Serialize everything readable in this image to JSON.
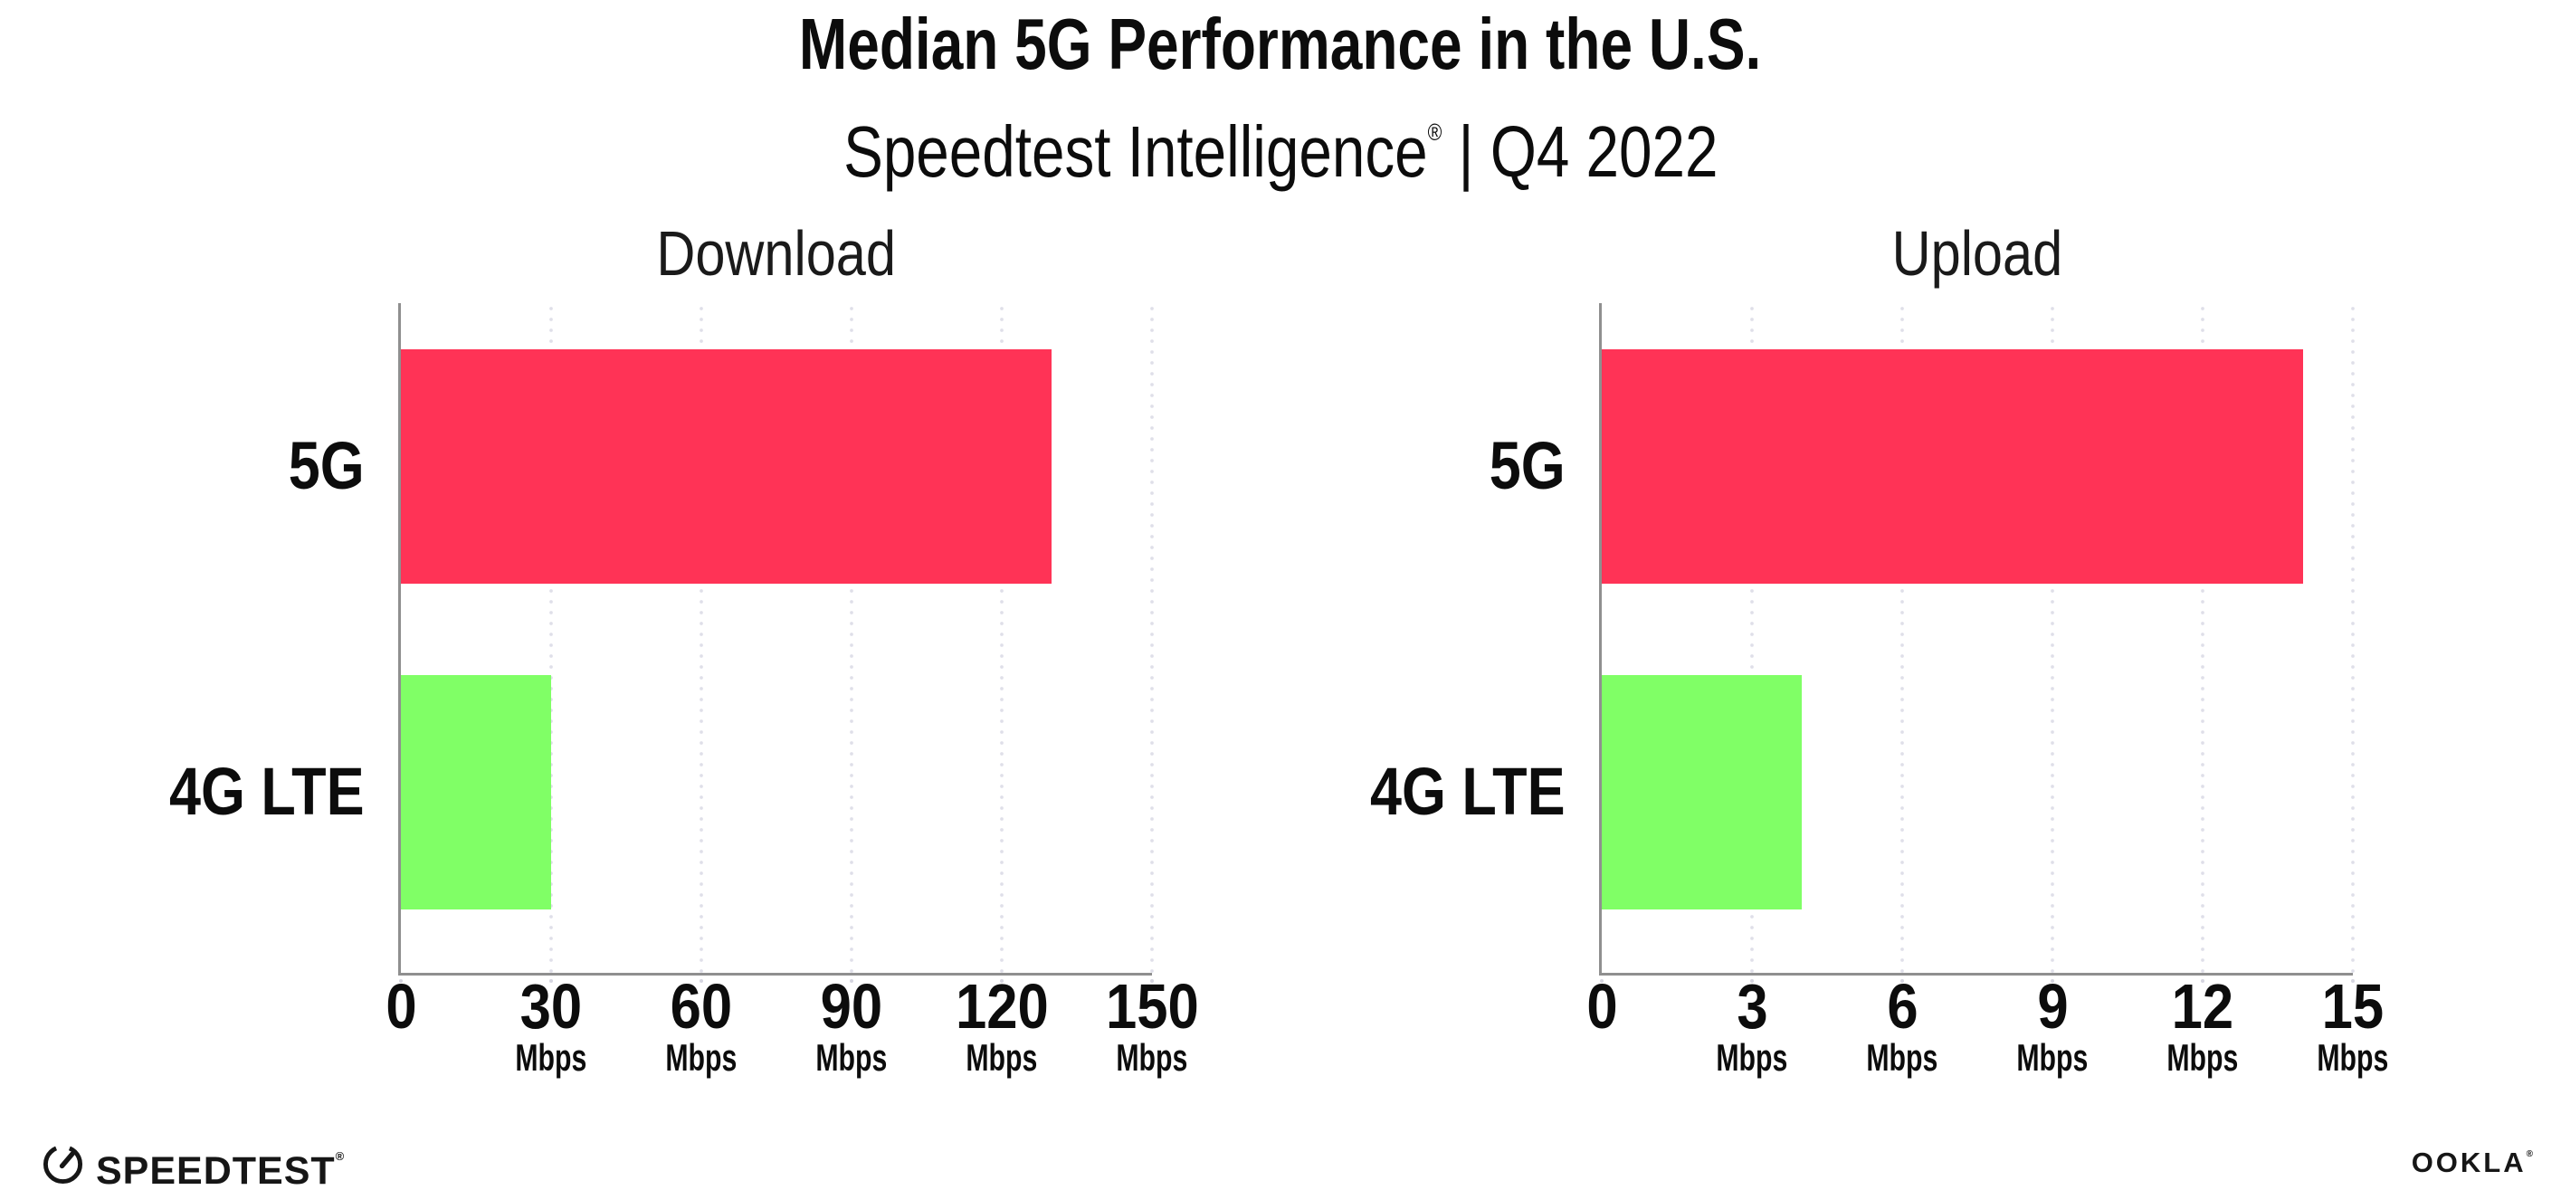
{
  "header": {
    "title": "Median 5G Performance in the U.S.",
    "subtitle_brand": "Speedtest Intelligence",
    "subtitle_reg": "®",
    "subtitle_period": " | Q4 2022"
  },
  "chart_data": [
    {
      "type": "bar",
      "orientation": "horizontal",
      "title": "Download",
      "categories": [
        "5G",
        "4G LTE"
      ],
      "values": [
        130,
        30
      ],
      "unit": "Mbps",
      "xlim": [
        0,
        150
      ],
      "xticks": [
        0,
        30,
        60,
        90,
        120,
        150
      ],
      "tick_unit_label": "Mbps",
      "bar_colors": [
        "#FF3356",
        "#80FF66"
      ],
      "grid": "dotted vertical gridlines at each tick",
      "legend": "none"
    },
    {
      "type": "bar",
      "orientation": "horizontal",
      "title": "Upload",
      "categories": [
        "5G",
        "4G LTE"
      ],
      "values": [
        14,
        4
      ],
      "unit": "Mbps",
      "xlim": [
        0,
        15
      ],
      "xticks": [
        0,
        3,
        6,
        9,
        12,
        15
      ],
      "tick_unit_label": "Mbps",
      "bar_colors": [
        "#FF3356",
        "#80FF66"
      ],
      "grid": "dotted vertical gridlines at each tick",
      "legend": "none"
    }
  ],
  "footer": {
    "speedtest_logo_text": "SPEEDTEST",
    "speedtest_reg": "®",
    "ookla_logo_text": "OOKLA",
    "ookla_reg": "®"
  },
  "colors": {
    "bar_5g": "#FF3356",
    "bar_4g_lte": "#80FF66",
    "axis": "#8F8F8F",
    "gridline_dots": "#DFDFE9",
    "text": "#0C0C0C",
    "background": "#FFFFFF"
  }
}
